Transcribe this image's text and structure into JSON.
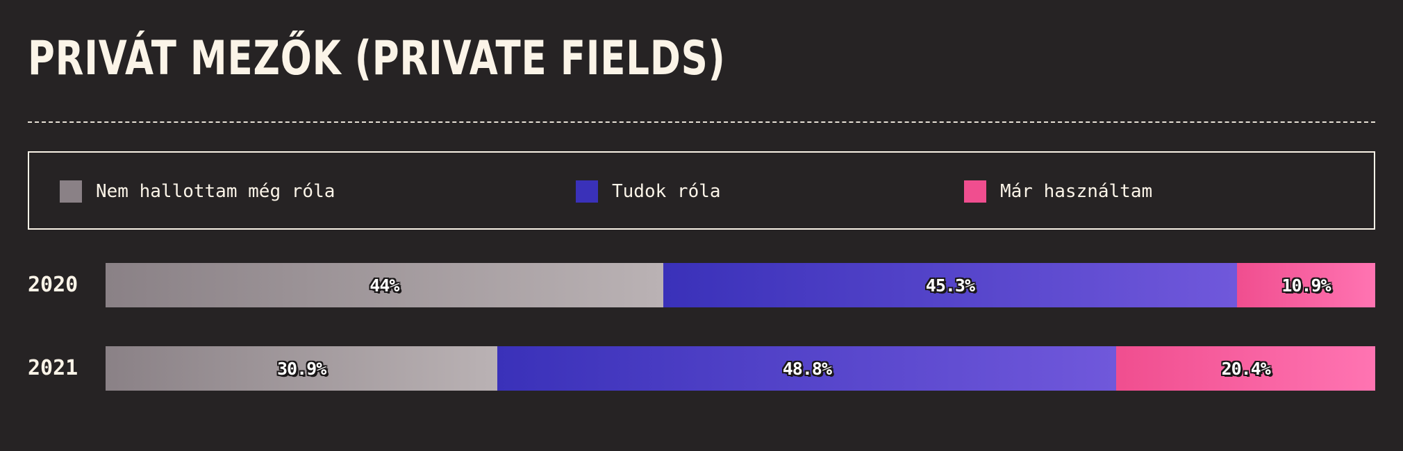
{
  "title": "PRIVÁT MEZŐK (PRIVATE FIELDS)",
  "legend": [
    {
      "label": "Nem hallottam még róla",
      "color": "#8a8186"
    },
    {
      "label": "Tudok róla",
      "color": "#3a31b9"
    },
    {
      "label": "Már használtam",
      "color": "#f04e8f"
    }
  ],
  "colors": {
    "background": "#262324",
    "text": "#fbf4e8",
    "gradients": [
      [
        "#8a8186",
        "#bab2b4"
      ],
      [
        "#3a31b9",
        "#7058db"
      ],
      [
        "#f04e8f",
        "#ff74b2"
      ]
    ]
  },
  "chart_data": {
    "type": "bar",
    "orientation": "horizontal",
    "stacked": true,
    "normalized": true,
    "categories": [
      "2020",
      "2021"
    ],
    "series": [
      {
        "name": "Nem hallottam még róla",
        "values": [
          44,
          30.9
        ],
        "labels": [
          "44%",
          "30.9%"
        ]
      },
      {
        "name": "Tudok róla",
        "values": [
          45.3,
          48.8
        ],
        "labels": [
          "45.3%",
          "48.8%"
        ]
      },
      {
        "name": "Már használtam",
        "values": [
          10.9,
          20.4
        ],
        "labels": [
          "10.9%",
          "20.4%"
        ]
      }
    ],
    "xlim": [
      0,
      100
    ],
    "grid": false,
    "legend_position": "top"
  }
}
